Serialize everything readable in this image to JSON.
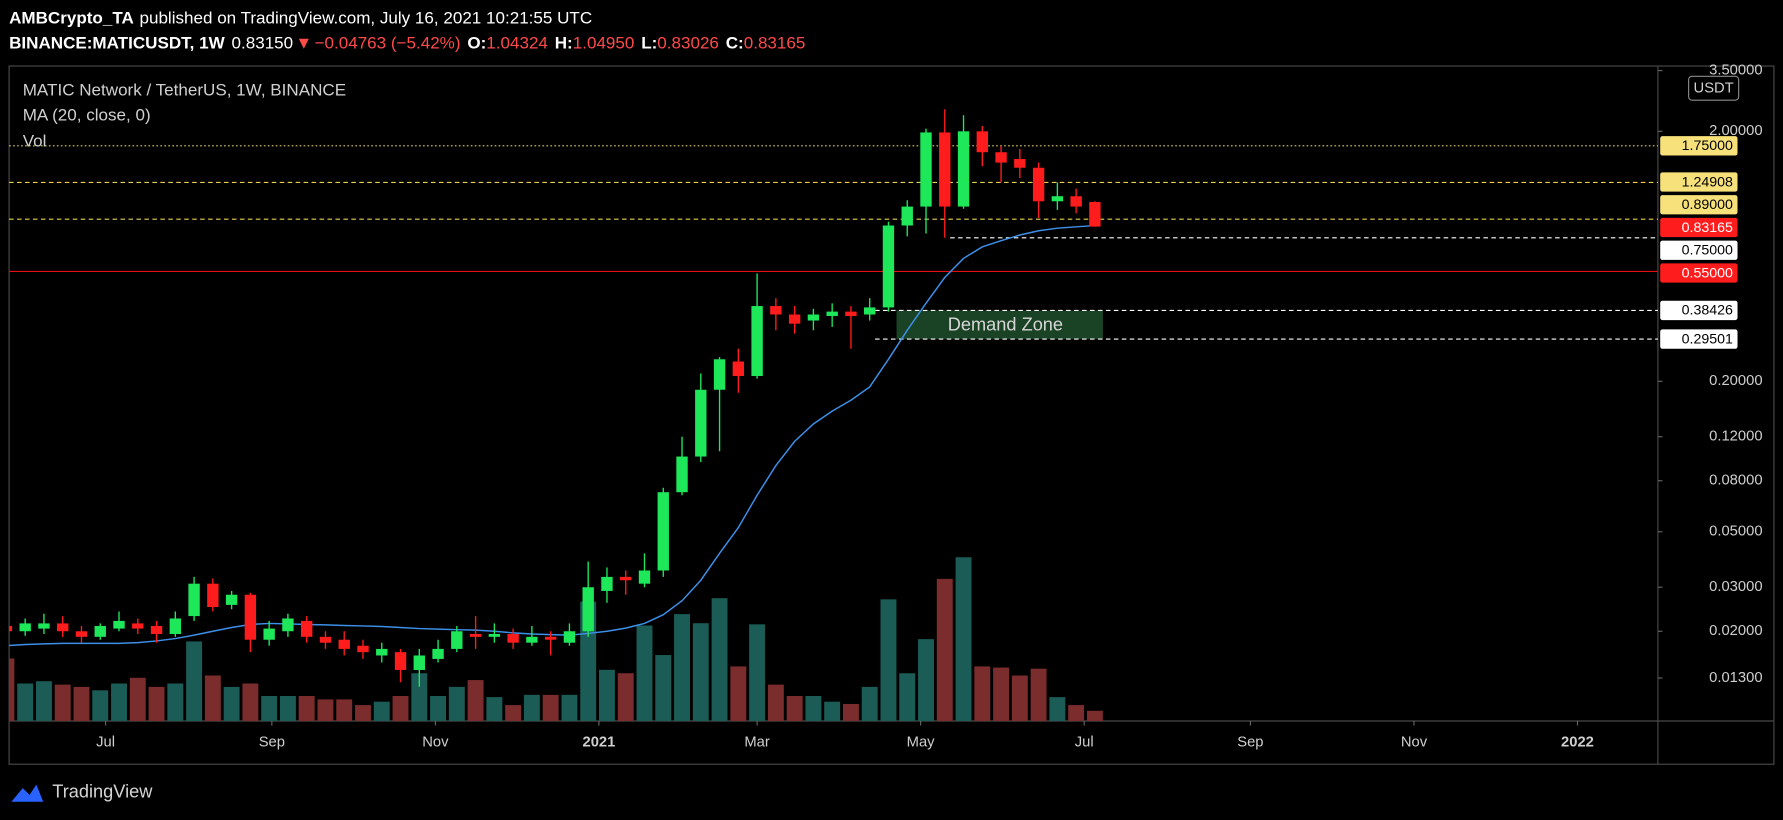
{
  "header": {
    "author": "AMBCrypto_TA",
    "published": "published on TradingView.com, July 16, 2021 10:21:55 UTC",
    "symbol": "BINANCE:MATICUSDT, 1W",
    "last": "0.83150",
    "arrow": "▼",
    "change": "−0.04763 (−5.42%)",
    "o_label": "O:",
    "o": "1.04324",
    "h_label": "H:",
    "h": "1.04950",
    "l_label": "L:",
    "l": "0.83026",
    "c_label": "C:",
    "c": "0.83165"
  },
  "footer": {
    "brand": "TradingView"
  },
  "chart_data": {
    "type": "candlestick",
    "title": "MATIC Network / TetherUS, 1W, BINANCE",
    "currency": "USDT",
    "log_scale": true,
    "up_color": "#1ee85a",
    "down_color": "#ff1c1c",
    "up_volume_color": "#1b5c56",
    "down_volume_color": "#7b2c2c",
    "x": [
      "2020-05-25",
      "2020-06-01",
      "2020-06-08",
      "2020-06-15",
      "2020-06-22",
      "2020-06-29",
      "2020-07-06",
      "2020-07-13",
      "2020-07-20",
      "2020-07-27",
      "2020-08-03",
      "2020-08-10",
      "2020-08-17",
      "2020-08-24",
      "2020-08-31",
      "2020-09-07",
      "2020-09-14",
      "2020-09-21",
      "2020-09-28",
      "2020-10-05",
      "2020-10-12",
      "2020-10-19",
      "2020-10-26",
      "2020-11-02",
      "2020-11-09",
      "2020-11-16",
      "2020-11-23",
      "2020-11-30",
      "2020-12-07",
      "2020-12-14",
      "2020-12-21",
      "2020-12-28",
      "2021-01-04",
      "2021-01-11",
      "2021-01-18",
      "2021-01-25",
      "2021-02-01",
      "2021-02-08",
      "2021-02-15",
      "2021-02-22",
      "2021-03-01",
      "2021-03-08",
      "2021-03-15",
      "2021-03-22",
      "2021-03-29",
      "2021-04-05",
      "2021-04-12",
      "2021-04-19",
      "2021-04-26",
      "2021-05-03",
      "2021-05-10",
      "2021-05-17",
      "2021-05-24",
      "2021-05-31",
      "2021-06-07",
      "2021-06-14",
      "2021-06-21",
      "2021-06-28",
      "2021-07-05"
    ],
    "open": [
      0.021,
      0.02,
      0.0205,
      0.0215,
      0.02,
      0.019,
      0.0205,
      0.0215,
      0.021,
      0.0195,
      0.023,
      0.031,
      0.0255,
      0.028,
      0.0185,
      0.02,
      0.022,
      0.019,
      0.0185,
      0.0175,
      0.016,
      0.0165,
      0.014,
      0.0155,
      0.017,
      0.0195,
      0.019,
      0.0195,
      0.018,
      0.019,
      0.018,
      0.02,
      0.029,
      0.033,
      0.031,
      0.035,
      0.072,
      0.1,
      0.185,
      0.24,
      0.21,
      0.4,
      0.37,
      0.35,
      0.365,
      0.38,
      0.37,
      0.395,
      0.84,
      1.0,
      1.98,
      1.0,
      2.0,
      1.65,
      1.55,
      1.43,
      1.05,
      1.1,
      1.04324
    ],
    "high": [
      0.0225,
      0.0225,
      0.0235,
      0.023,
      0.021,
      0.0215,
      0.024,
      0.0225,
      0.022,
      0.024,
      0.033,
      0.0325,
      0.029,
      0.0285,
      0.022,
      0.0235,
      0.023,
      0.02,
      0.02,
      0.0185,
      0.018,
      0.017,
      0.017,
      0.0185,
      0.021,
      0.023,
      0.0215,
      0.0205,
      0.021,
      0.02,
      0.0215,
      0.038,
      0.036,
      0.035,
      0.041,
      0.075,
      0.12,
      0.215,
      0.25,
      0.27,
      0.54,
      0.43,
      0.4,
      0.39,
      0.41,
      0.4,
      0.43,
      0.87,
      1.06,
      2.05,
      2.45,
      2.32,
      2.1,
      1.75,
      1.7,
      1.5,
      1.25,
      1.18,
      1.0495
    ],
    "low": [
      0.0195,
      0.0192,
      0.0195,
      0.019,
      0.018,
      0.0185,
      0.02,
      0.0195,
      0.018,
      0.019,
      0.022,
      0.024,
      0.0245,
      0.0165,
      0.0175,
      0.019,
      0.018,
      0.017,
      0.016,
      0.0155,
      0.015,
      0.0125,
      0.012,
      0.015,
      0.0165,
      0.017,
      0.018,
      0.017,
      0.0175,
      0.016,
      0.0175,
      0.019,
      0.026,
      0.028,
      0.03,
      0.033,
      0.07,
      0.095,
      0.105,
      0.18,
      0.205,
      0.32,
      0.31,
      0.32,
      0.33,
      0.27,
      0.35,
      0.38,
      0.76,
      0.78,
      0.75,
      0.98,
      1.45,
      1.25,
      1.3,
      0.9,
      0.97,
      0.94,
      0.83026
    ],
    "close": [
      0.02,
      0.0215,
      0.0215,
      0.02,
      0.019,
      0.021,
      0.022,
      0.0205,
      0.0195,
      0.0225,
      0.031,
      0.025,
      0.028,
      0.0185,
      0.0205,
      0.0225,
      0.019,
      0.018,
      0.017,
      0.0165,
      0.017,
      0.014,
      0.016,
      0.017,
      0.02,
      0.019,
      0.0195,
      0.018,
      0.019,
      0.0185,
      0.02,
      0.03,
      0.033,
      0.032,
      0.035,
      0.072,
      0.1,
      0.185,
      0.245,
      0.21,
      0.4,
      0.37,
      0.34,
      0.37,
      0.38,
      0.365,
      0.395,
      0.84,
      1.0,
      1.98,
      1.0,
      2.0,
      1.65,
      1.5,
      1.43,
      1.05,
      1.1,
      1.0,
      0.83165
    ],
    "ma": {
      "name": "MA (20, close, 0)",
      "color": "#3d8fe8",
      "values": [
        0.0175,
        0.0177,
        0.0178,
        0.0179,
        0.0179,
        0.0179,
        0.0179,
        0.018,
        0.0183,
        0.0187,
        0.0193,
        0.02,
        0.0207,
        0.0213,
        0.0215,
        0.0214,
        0.0213,
        0.0212,
        0.0211,
        0.021,
        0.0209,
        0.0207,
        0.0205,
        0.0204,
        0.0203,
        0.0202,
        0.02,
        0.0197,
        0.0195,
        0.0194,
        0.0193,
        0.0196,
        0.02,
        0.0206,
        0.0215,
        0.0233,
        0.0265,
        0.032,
        0.041,
        0.052,
        0.07,
        0.092,
        0.115,
        0.135,
        0.152,
        0.168,
        0.19,
        0.245,
        0.32,
        0.41,
        0.52,
        0.62,
        0.69,
        0.73,
        0.77,
        0.8,
        0.82,
        0.83,
        0.84
      ]
    },
    "volume": {
      "name": "Vol",
      "ylim": [
        0,
        576
      ],
      "values": [
        55,
        33,
        35,
        32,
        30,
        27,
        33,
        38,
        30,
        33,
        70,
        40,
        30,
        33,
        22,
        22,
        22,
        19,
        19,
        14,
        17,
        22,
        42,
        22,
        30,
        36,
        21,
        14,
        23,
        23,
        23,
        105,
        45,
        42,
        84,
        58,
        94,
        86,
        108,
        48,
        85,
        32,
        22,
        22,
        17,
        15,
        30,
        107,
        42,
        72,
        125,
        144,
        48,
        47,
        40,
        46,
        21,
        14,
        9
      ]
    },
    "xlim": [
      "2020-05-26",
      "2022-01-31"
    ],
    "xticks": [
      {
        "value": "2020-07-01",
        "label": "Jul"
      },
      {
        "value": "2020-09-01",
        "label": "Sep"
      },
      {
        "value": "2020-11-01",
        "label": "Nov"
      },
      {
        "value": "2021-01-01",
        "label": "2021"
      },
      {
        "value": "2021-03-01",
        "label": "Mar"
      },
      {
        "value": "2021-05-01",
        "label": "May"
      },
      {
        "value": "2021-07-01",
        "label": "Jul"
      },
      {
        "value": "2021-09-01",
        "label": "Sep"
      },
      {
        "value": "2021-11-01",
        "label": "Nov"
      },
      {
        "value": "2022-01-01",
        "label": "2022"
      }
    ],
    "ylim": [
      0.00875,
      3.65
    ],
    "yticks": [
      {
        "value": 3.5,
        "label": "3.50000"
      },
      {
        "value": 2,
        "label": "2.00000"
      },
      {
        "value": 0.2,
        "label": "0.20000"
      },
      {
        "value": 0.12,
        "label": "0.12000"
      },
      {
        "value": 0.08,
        "label": "0.08000"
      },
      {
        "value": 0.05,
        "label": "0.05000"
      },
      {
        "value": 0.03,
        "label": "0.03000"
      },
      {
        "value": 0.02,
        "label": "0.02000"
      },
      {
        "value": 0.013,
        "label": "0.01300"
      }
    ],
    "levels": [
      {
        "value": 1.75,
        "label": "1.75000",
        "style": "dotted",
        "color": "#d9c75a",
        "label_color": "#f7e17a",
        "text_color": "#000000"
      },
      {
        "value": 1.24908,
        "label": "1.24908",
        "style": "dashed",
        "color": "#e6d24f",
        "label_color": "#f7e17a",
        "text_color": "#000000"
      },
      {
        "value": 0.89,
        "label": "0.89000",
        "style": "dashed",
        "color": "#e6d24f",
        "label_color": "#f7e17a",
        "text_color": "#000000"
      },
      {
        "value": 0.83165,
        "label": "0.83165",
        "style": "none",
        "color": "#ff1c1c",
        "label_color": "#ff1c1c",
        "text_color": "#ffffff"
      },
      {
        "value": 0.75,
        "label": "0.75000",
        "style": "dashed",
        "from": "2021-05-12",
        "color": "#ffffff",
        "label_color": "#ffffff",
        "text_color": "#000000"
      },
      {
        "value": 0.55,
        "label": "0.55000",
        "style": "solid",
        "color": "#e01010",
        "label_color": "#ff1c1c",
        "text_color": "#ffffff"
      },
      {
        "value": 0.38426,
        "label": "0.38426",
        "style": "dashed",
        "from": "2021-04-14",
        "color": "#ffffff",
        "label_color": "#ffffff",
        "text_color": "#000000"
      },
      {
        "value": 0.29501,
        "label": "0.29501",
        "style": "dashed",
        "from": "2021-04-14",
        "color": "#ffffff",
        "label_color": "#ffffff",
        "text_color": "#000000"
      }
    ],
    "zones": [
      {
        "label": "Demand Zone",
        "low": 0.29501,
        "high": 0.38426,
        "from": "2021-04-22",
        "to": "2021-07-08",
        "color": "#1f4d2c"
      }
    ]
  }
}
